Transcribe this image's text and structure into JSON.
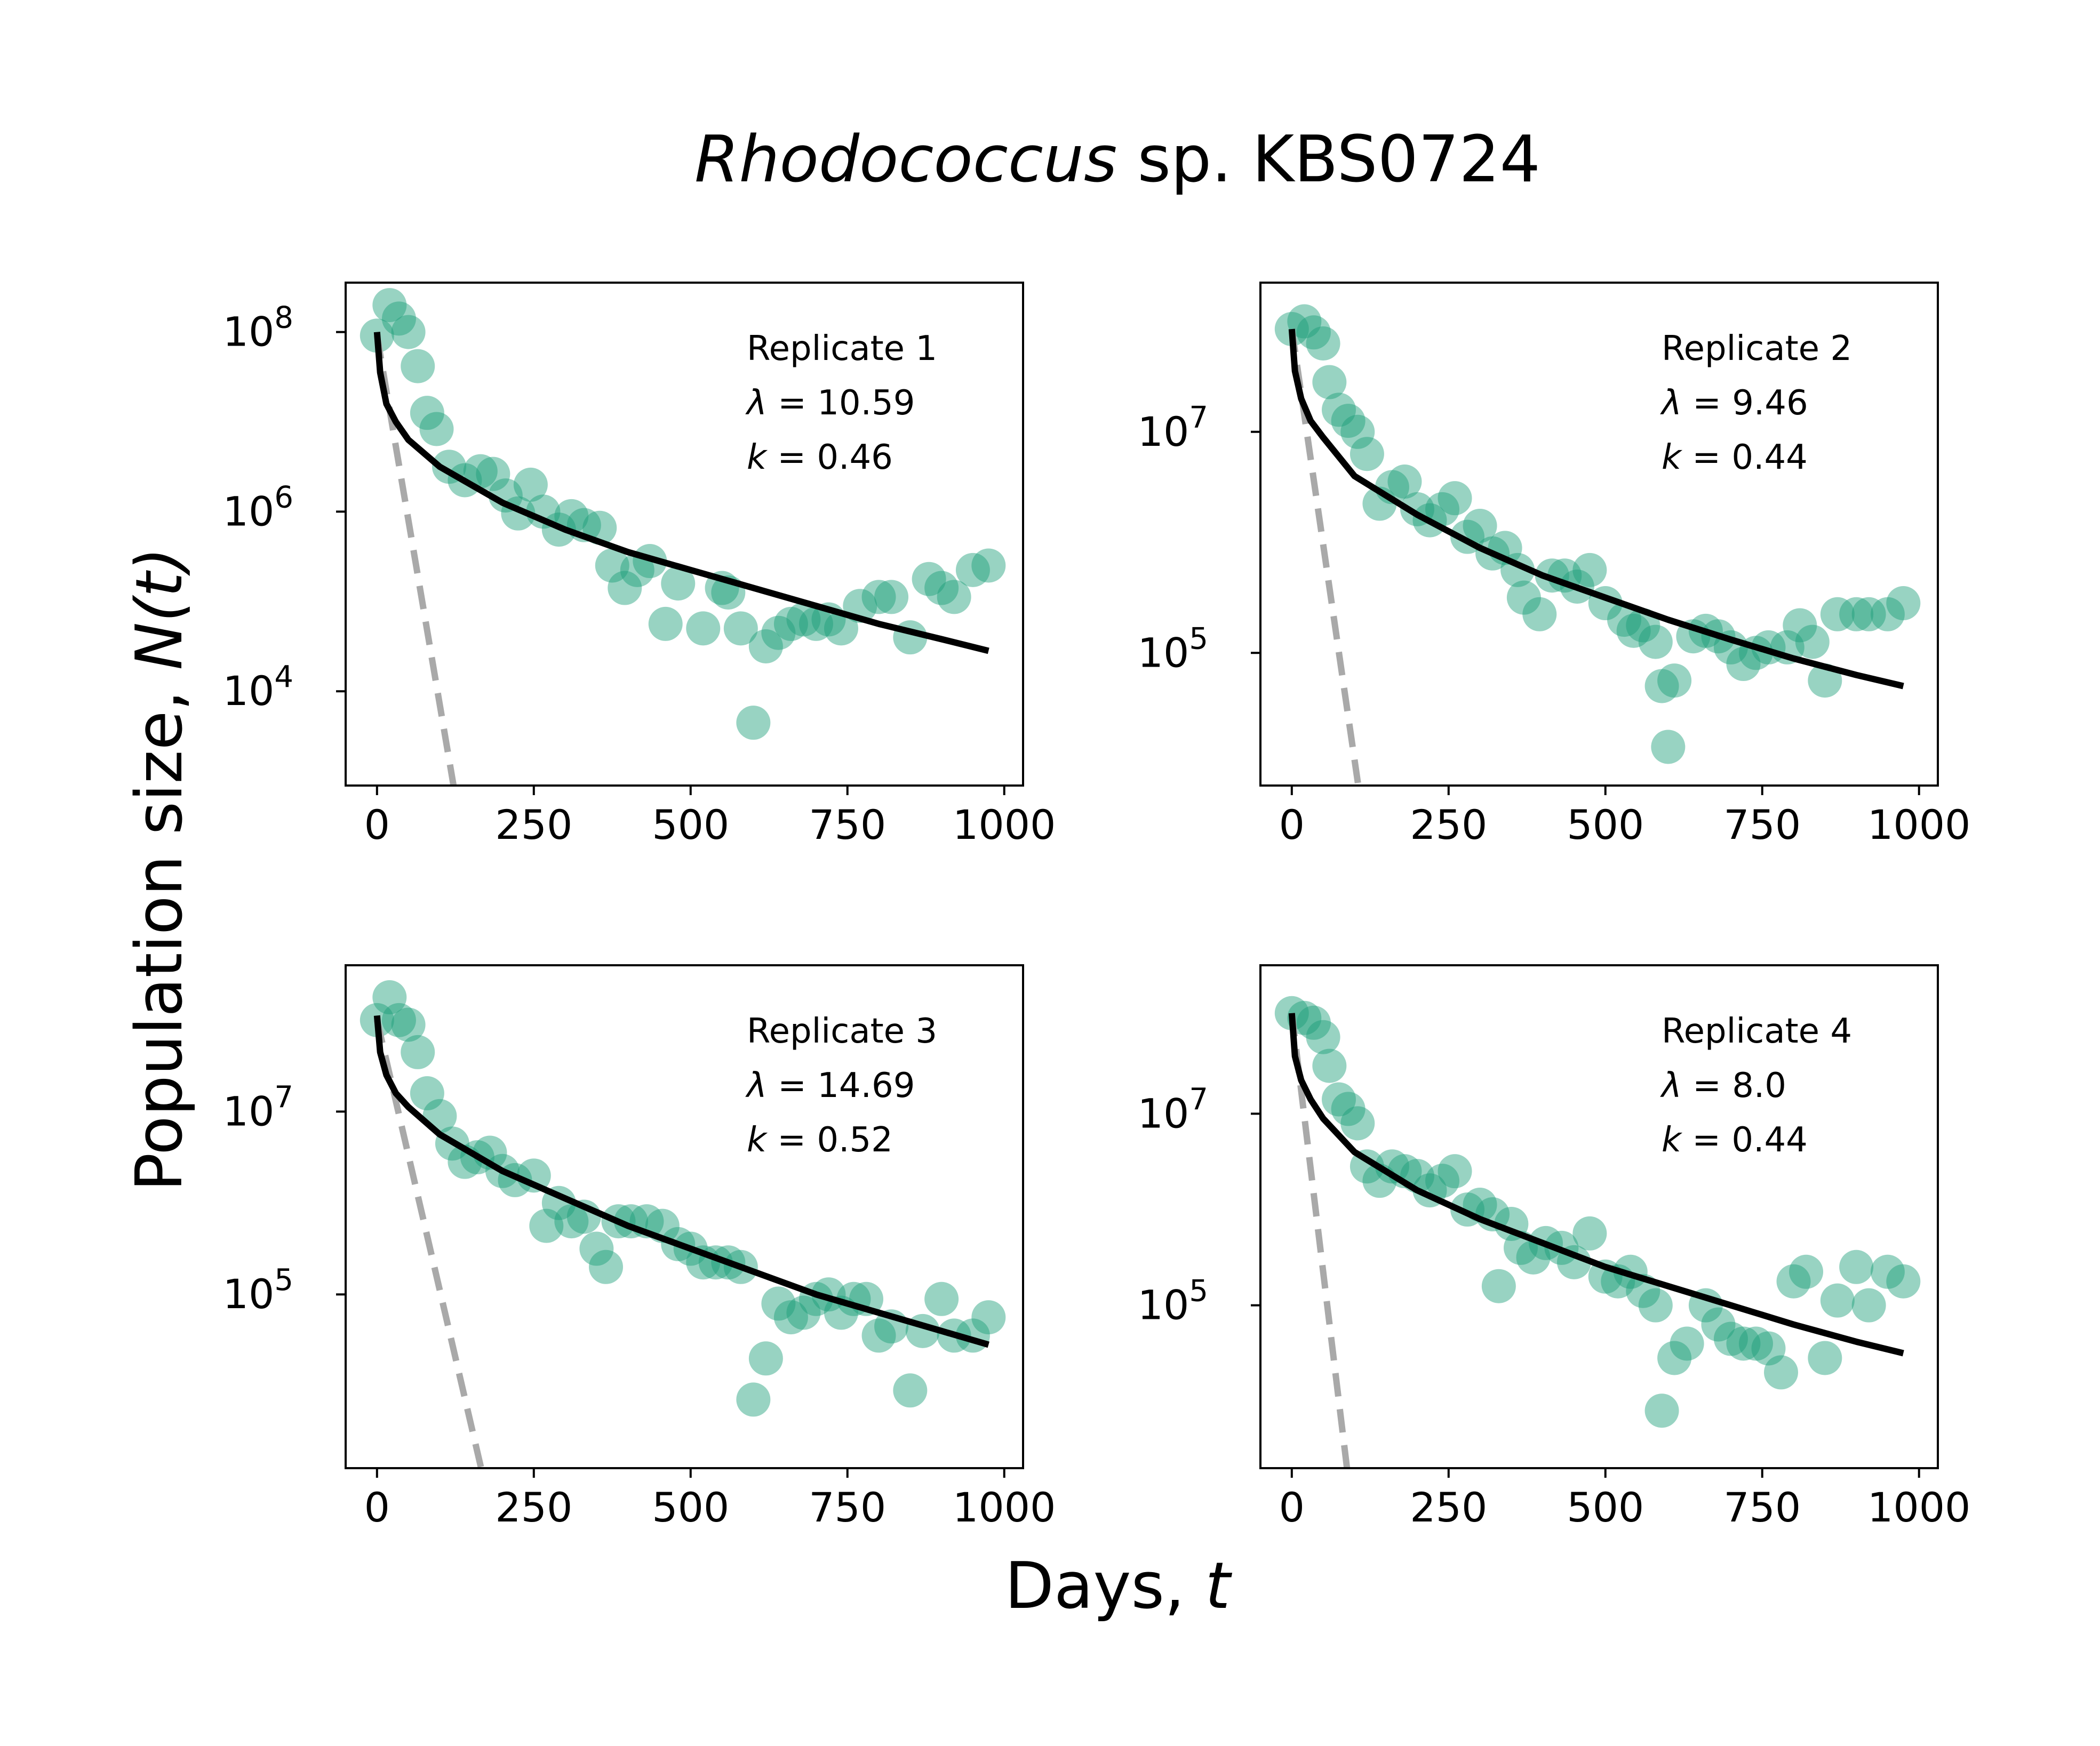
{
  "figure": {
    "title_italic": "Rhodococcus",
    "title_rest": " sp. KBS0724",
    "xlabel_text": "Days, ",
    "xlabel_var": "t",
    "ylabel_text": "Population size, ",
    "ylabel_var": "N(t)",
    "colors": {
      "points": "#1b9e77",
      "fit": "#000000",
      "reference": "#a9a9a9"
    }
  },
  "chart_data": [
    {
      "type": "scatter",
      "annotation": [
        "Replicate 1",
        "λ = 10.59",
        "k = 0.46"
      ],
      "lambda": 10.59,
      "k": 0.46,
      "xlim": [
        -50,
        1030
      ],
      "ylim_log10": [
        2.95,
        8.55
      ],
      "xticks": [
        0,
        250,
        500,
        750,
        1000
      ],
      "yticks": [
        {
          "base": "10",
          "exp": "4",
          "log": 4
        },
        {
          "base": "10",
          "exp": "6",
          "log": 6
        },
        {
          "base": "10",
          "exp": "8",
          "log": 8
        }
      ],
      "points": [
        [
          0,
          7.96
        ],
        [
          20,
          8.3
        ],
        [
          35,
          8.15
        ],
        [
          50,
          8.0
        ],
        [
          65,
          7.62
        ],
        [
          80,
          7.1
        ],
        [
          95,
          6.92
        ],
        [
          115,
          6.5
        ],
        [
          140,
          6.35
        ],
        [
          165,
          6.45
        ],
        [
          185,
          6.42
        ],
        [
          205,
          6.18
        ],
        [
          225,
          5.98
        ],
        [
          245,
          6.3
        ],
        [
          265,
          6.0
        ],
        [
          290,
          5.8
        ],
        [
          310,
          5.95
        ],
        [
          330,
          5.85
        ],
        [
          355,
          5.82
        ],
        [
          375,
          5.4
        ],
        [
          395,
          5.15
        ],
        [
          415,
          5.35
        ],
        [
          435,
          5.45
        ],
        [
          460,
          4.75
        ],
        [
          480,
          5.2
        ],
        [
          520,
          4.7
        ],
        [
          550,
          5.15
        ],
        [
          560,
          5.1
        ],
        [
          580,
          4.7
        ],
        [
          600,
          3.65
        ],
        [
          620,
          4.5
        ],
        [
          640,
          4.65
        ],
        [
          660,
          4.75
        ],
        [
          680,
          4.8
        ],
        [
          700,
          4.75
        ],
        [
          720,
          4.8
        ],
        [
          740,
          4.7
        ],
        [
          770,
          4.95
        ],
        [
          800,
          5.05
        ],
        [
          820,
          5.05
        ],
        [
          850,
          4.6
        ],
        [
          880,
          5.25
        ],
        [
          900,
          5.15
        ],
        [
          920,
          5.05
        ],
        [
          950,
          5.35
        ],
        [
          975,
          5.4
        ]
      ],
      "fit_start_log": 8.0,
      "fit": [
        [
          0,
          8.0
        ],
        [
          5,
          7.55
        ],
        [
          15,
          7.2
        ],
        [
          30,
          7.0
        ],
        [
          50,
          6.8
        ],
        [
          100,
          6.5
        ],
        [
          200,
          6.1
        ],
        [
          300,
          5.8
        ],
        [
          400,
          5.55
        ],
        [
          500,
          5.35
        ],
        [
          600,
          5.15
        ],
        [
          700,
          4.95
        ],
        [
          800,
          4.75
        ],
        [
          900,
          4.58
        ],
        [
          975,
          4.45
        ]
      ],
      "reference": [
        [
          0,
          7.96
        ],
        [
          122,
          2.95
        ]
      ]
    },
    {
      "type": "scatter",
      "annotation": [
        "Replicate 2",
        "λ = 9.46",
        "k = 0.44"
      ],
      "lambda": 9.46,
      "k": 0.44,
      "xlim": [
        -50,
        1030
      ],
      "ylim_log10": [
        3.8,
        8.35
      ],
      "xticks": [
        0,
        250,
        500,
        750,
        1000
      ],
      "yticks": [
        {
          "base": "10",
          "exp": "5",
          "log": 5
        },
        {
          "base": "10",
          "exp": "7",
          "log": 7
        }
      ],
      "points": [
        [
          0,
          7.93
        ],
        [
          20,
          8.0
        ],
        [
          35,
          7.9
        ],
        [
          50,
          7.8
        ],
        [
          60,
          7.45
        ],
        [
          75,
          7.2
        ],
        [
          90,
          7.1
        ],
        [
          105,
          7.0
        ],
        [
          120,
          6.8
        ],
        [
          140,
          6.35
        ],
        [
          160,
          6.5
        ],
        [
          180,
          6.55
        ],
        [
          200,
          6.3
        ],
        [
          220,
          6.2
        ],
        [
          240,
          6.3
        ],
        [
          260,
          6.4
        ],
        [
          280,
          6.05
        ],
        [
          300,
          6.15
        ],
        [
          320,
          5.9
        ],
        [
          340,
          5.95
        ],
        [
          360,
          5.75
        ],
        [
          370,
          5.5
        ],
        [
          395,
          5.35
        ],
        [
          415,
          5.7
        ],
        [
          435,
          5.7
        ],
        [
          455,
          5.6
        ],
        [
          475,
          5.75
        ],
        [
          500,
          5.45
        ],
        [
          530,
          5.3
        ],
        [
          545,
          5.2
        ],
        [
          560,
          5.25
        ],
        [
          580,
          5.1
        ],
        [
          590,
          4.7
        ],
        [
          600,
          4.15
        ],
        [
          610,
          4.75
        ],
        [
          640,
          5.15
        ],
        [
          660,
          5.2
        ],
        [
          680,
          5.15
        ],
        [
          700,
          5.05
        ],
        [
          720,
          4.9
        ],
        [
          740,
          5.0
        ],
        [
          760,
          5.05
        ],
        [
          790,
          5.05
        ],
        [
          810,
          5.25
        ],
        [
          830,
          5.1
        ],
        [
          850,
          4.75
        ],
        [
          870,
          5.35
        ],
        [
          900,
          5.35
        ],
        [
          920,
          5.35
        ],
        [
          950,
          5.35
        ],
        [
          975,
          5.45
        ]
      ],
      "fit_start_log": 7.93,
      "fit": [
        [
          0,
          7.93
        ],
        [
          5,
          7.55
        ],
        [
          15,
          7.3
        ],
        [
          30,
          7.1
        ],
        [
          50,
          6.95
        ],
        [
          100,
          6.6
        ],
        [
          200,
          6.25
        ],
        [
          300,
          5.95
        ],
        [
          400,
          5.7
        ],
        [
          500,
          5.5
        ],
        [
          600,
          5.3
        ],
        [
          700,
          5.12
        ],
        [
          800,
          4.95
        ],
        [
          900,
          4.8
        ],
        [
          975,
          4.7
        ]
      ],
      "reference": [
        [
          0,
          7.93
        ],
        [
          106,
          3.8
        ]
      ]
    },
    {
      "type": "scatter",
      "annotation": [
        "Replicate 3",
        "λ = 14.69",
        "k = 0.52"
      ],
      "lambda": 14.69,
      "k": 0.52,
      "xlim": [
        -50,
        1030
      ],
      "ylim_log10": [
        3.1,
        8.6
      ],
      "xticks": [
        0,
        250,
        500,
        750,
        1000
      ],
      "yticks": [
        {
          "base": "10",
          "exp": "5",
          "log": 5
        },
        {
          "base": "10",
          "exp": "7",
          "log": 7
        }
      ],
      "points": [
        [
          0,
          8.0
        ],
        [
          20,
          8.25
        ],
        [
          35,
          8.0
        ],
        [
          50,
          7.95
        ],
        [
          65,
          7.65
        ],
        [
          80,
          7.2
        ],
        [
          100,
          6.95
        ],
        [
          120,
          6.65
        ],
        [
          140,
          6.45
        ],
        [
          160,
          6.5
        ],
        [
          180,
          6.55
        ],
        [
          200,
          6.35
        ],
        [
          220,
          6.25
        ],
        [
          250,
          6.3
        ],
        [
          270,
          5.75
        ],
        [
          290,
          6.0
        ],
        [
          310,
          5.8
        ],
        [
          330,
          5.85
        ],
        [
          350,
          5.5
        ],
        [
          365,
          5.3
        ],
        [
          385,
          5.8
        ],
        [
          405,
          5.8
        ],
        [
          430,
          5.8
        ],
        [
          455,
          5.75
        ],
        [
          480,
          5.55
        ],
        [
          500,
          5.5
        ],
        [
          520,
          5.35
        ],
        [
          540,
          5.35
        ],
        [
          560,
          5.35
        ],
        [
          580,
          5.3
        ],
        [
          600,
          3.85
        ],
        [
          620,
          4.3
        ],
        [
          640,
          4.9
        ],
        [
          660,
          4.75
        ],
        [
          680,
          4.8
        ],
        [
          700,
          4.95
        ],
        [
          720,
          5.0
        ],
        [
          740,
          4.8
        ],
        [
          760,
          4.95
        ],
        [
          780,
          4.95
        ],
        [
          800,
          4.55
        ],
        [
          820,
          4.65
        ],
        [
          850,
          3.95
        ],
        [
          870,
          4.6
        ],
        [
          900,
          4.95
        ],
        [
          920,
          4.55
        ],
        [
          950,
          4.55
        ],
        [
          975,
          4.75
        ]
      ],
      "fit_start_log": 8.05,
      "fit": [
        [
          0,
          8.05
        ],
        [
          5,
          7.65
        ],
        [
          15,
          7.4
        ],
        [
          30,
          7.2
        ],
        [
          50,
          7.05
        ],
        [
          100,
          6.75
        ],
        [
          200,
          6.35
        ],
        [
          300,
          6.05
        ],
        [
          400,
          5.75
        ],
        [
          500,
          5.5
        ],
        [
          600,
          5.25
        ],
        [
          700,
          5.0
        ],
        [
          800,
          4.8
        ],
        [
          900,
          4.6
        ],
        [
          975,
          4.45
        ]
      ],
      "reference": [
        [
          0,
          8.0
        ],
        [
          166,
          3.1
        ]
      ]
    },
    {
      "type": "scatter",
      "annotation": [
        "Replicate 4",
        "λ = 8.0",
        "k = 0.44"
      ],
      "lambda": 8.0,
      "k": 0.44,
      "xlim": [
        -50,
        1030
      ],
      "ylim_log10": [
        3.3,
        8.55
      ],
      "xticks": [
        0,
        250,
        500,
        750,
        1000
      ],
      "yticks": [
        {
          "base": "10",
          "exp": "5",
          "log": 5
        },
        {
          "base": "10",
          "exp": "7",
          "log": 7
        }
      ],
      "points": [
        [
          0,
          8.05
        ],
        [
          20,
          8.0
        ],
        [
          35,
          7.95
        ],
        [
          50,
          7.8
        ],
        [
          60,
          7.5
        ],
        [
          75,
          7.15
        ],
        [
          90,
          7.05
        ],
        [
          105,
          6.9
        ],
        [
          120,
          6.45
        ],
        [
          140,
          6.3
        ],
        [
          160,
          6.45
        ],
        [
          180,
          6.4
        ],
        [
          200,
          6.35
        ],
        [
          220,
          6.2
        ],
        [
          240,
          6.3
        ],
        [
          260,
          6.4
        ],
        [
          280,
          6.0
        ],
        [
          300,
          6.05
        ],
        [
          320,
          5.95
        ],
        [
          330,
          5.2
        ],
        [
          350,
          5.85
        ],
        [
          365,
          5.6
        ],
        [
          385,
          5.5
        ],
        [
          405,
          5.65
        ],
        [
          430,
          5.6
        ],
        [
          450,
          5.45
        ],
        [
          475,
          5.75
        ],
        [
          500,
          5.3
        ],
        [
          520,
          5.25
        ],
        [
          540,
          5.35
        ],
        [
          560,
          5.15
        ],
        [
          580,
          5.0
        ],
        [
          590,
          3.9
        ],
        [
          610,
          4.45
        ],
        [
          630,
          4.6
        ],
        [
          660,
          5.0
        ],
        [
          680,
          4.8
        ],
        [
          700,
          4.65
        ],
        [
          720,
          4.6
        ],
        [
          740,
          4.6
        ],
        [
          760,
          4.55
        ],
        [
          780,
          4.3
        ],
        [
          800,
          5.25
        ],
        [
          820,
          5.35
        ],
        [
          850,
          4.45
        ],
        [
          870,
          5.05
        ],
        [
          900,
          5.4
        ],
        [
          920,
          5.0
        ],
        [
          950,
          5.35
        ],
        [
          975,
          5.25
        ]
      ],
      "fit_start_log": 8.05,
      "fit": [
        [
          0,
          8.05
        ],
        [
          5,
          7.6
        ],
        [
          15,
          7.35
        ],
        [
          30,
          7.15
        ],
        [
          50,
          6.95
        ],
        [
          100,
          6.6
        ],
        [
          200,
          6.2
        ],
        [
          300,
          5.9
        ],
        [
          400,
          5.65
        ],
        [
          500,
          5.4
        ],
        [
          600,
          5.2
        ],
        [
          700,
          5.0
        ],
        [
          800,
          4.8
        ],
        [
          900,
          4.62
        ],
        [
          975,
          4.5
        ]
      ],
      "reference": [
        [
          0,
          8.05
        ],
        [
          88,
          3.3
        ]
      ]
    }
  ]
}
